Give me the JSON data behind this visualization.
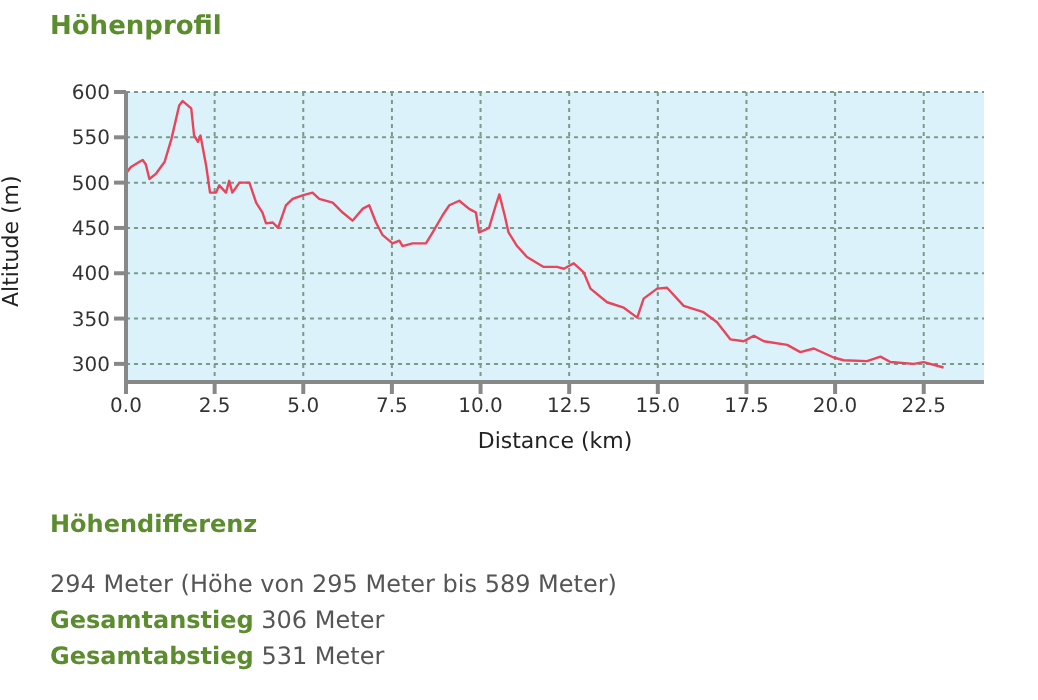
{
  "chart_data": {
    "type": "line",
    "title": "Höhenprofil",
    "xlabel": "Distance (km)",
    "ylabel": "Altitude (m)",
    "x": [
      0,
      0.13,
      0.38,
      0.47,
      0.56,
      0.66,
      0.85,
      1.09,
      1.28,
      1.5,
      1.6,
      1.84,
      1.92,
      2.03,
      2.1,
      2.26,
      2.37,
      2.54,
      2.63,
      2.82,
      2.91,
      3.0,
      3.2,
      3.48,
      3.67,
      3.85,
      3.95,
      4.14,
      4.29,
      4.51,
      4.7,
      4.98,
      5.26,
      5.45,
      5.83,
      6.11,
      6.39,
      6.67,
      6.86,
      7.05,
      7.24,
      7.52,
      7.71,
      7.8,
      8.08,
      8.46,
      8.65,
      8.93,
      9.12,
      9.4,
      9.68,
      9.87,
      9.96,
      10.24,
      10.43,
      10.53,
      10.68,
      10.79,
      11.03,
      11.31,
      11.78,
      12.16,
      12.35,
      12.63,
      12.91,
      13.1,
      13.57,
      14.04,
      14.42,
      14.6,
      14.98,
      15.26,
      15.73,
      16.29,
      16.67,
      17.05,
      17.42,
      17.71,
      17.99,
      18.65,
      19.02,
      19.4,
      19.96,
      20.24,
      20.9,
      21.28,
      21.56,
      22.22,
      22.5,
      23.06
    ],
    "series": [
      {
        "color": "#e8455a",
        "values": [
          510,
          517,
          523,
          525,
          520,
          504,
          510,
          523,
          548,
          585,
          590,
          582,
          552,
          545,
          552,
          519,
          489,
          489,
          497,
          489,
          502,
          489,
          500,
          500,
          478,
          467,
          455,
          456,
          450,
          475,
          482,
          486,
          489,
          482,
          478,
          467,
          458,
          471,
          475,
          456,
          442,
          433,
          436,
          430,
          433,
          433,
          445,
          464,
          475,
          480,
          471,
          467,
          445,
          450,
          475,
          487,
          464,
          445,
          430,
          418,
          407,
          407,
          405,
          411,
          401,
          383,
          368,
          362,
          351,
          372,
          383,
          384,
          364,
          357,
          346,
          327,
          325,
          331,
          325,
          321,
          313,
          317,
          307,
          304,
          303,
          308,
          302,
          300,
          302,
          296
        ]
      }
    ],
    "xlim": [
      0,
      24.2
    ],
    "xticks": [
      {
        "value": 0,
        "label": "0.0"
      },
      {
        "value": 2.5,
        "label": "2.5"
      },
      {
        "value": 5,
        "label": "5.0"
      },
      {
        "value": 7.5,
        "label": "7.5"
      },
      {
        "value": 10,
        "label": "10.0"
      },
      {
        "value": 12.5,
        "label": "12.5"
      },
      {
        "value": 15,
        "label": "15.0"
      },
      {
        "value": 17.5,
        "label": "17.5"
      },
      {
        "value": 20,
        "label": "20.0"
      },
      {
        "value": 22.5,
        "label": "22.5"
      }
    ],
    "ylim": [
      280,
      600
    ],
    "yticks": [
      300,
      350,
      400,
      450,
      500,
      550,
      600
    ],
    "grid": true,
    "legend": false,
    "marker": "none",
    "line_style": "solid",
    "annotations": [
      "Höhendifferenz",
      "294 Meter (Höhe von 295 Meter bis 589 Meter)",
      "Gesamtanstieg 306 Meter",
      "Gesamtabstieg 531 Meter"
    ]
  }
}
